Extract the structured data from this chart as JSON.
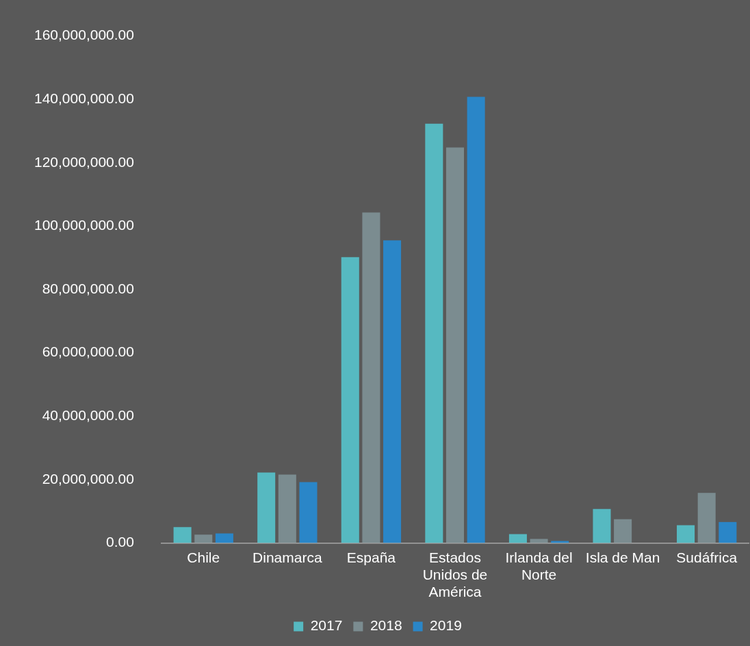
{
  "chart_data": {
    "type": "bar",
    "categories": [
      "Chile",
      "Dinamarca",
      "España",
      "Estados Unidos de América",
      "Irlanda del Norte",
      "Isla de Man",
      "Sudáfrica"
    ],
    "series": [
      {
        "name": "2017",
        "color": "#56b9c1",
        "values": [
          5000000,
          22200000,
          90200000,
          132300000,
          2800000,
          10700000,
          5600000
        ]
      },
      {
        "name": "2018",
        "color": "#7b8c90",
        "values": [
          2600000,
          21600000,
          104300000,
          124800000,
          1300000,
          7500000,
          15800000
        ]
      },
      {
        "name": "2019",
        "color": "#2a86c8",
        "values": [
          3000000,
          19200000,
          95500000,
          140800000,
          600000,
          null,
          6600000
        ]
      }
    ],
    "ylim": [
      0,
      160000000
    ],
    "yticks": [
      {
        "value": 0,
        "label": "0.00"
      },
      {
        "value": 20000000,
        "label": "20,000,000.00"
      },
      {
        "value": 40000000,
        "label": "40,000,000.00"
      },
      {
        "value": 60000000,
        "label": "60,000,000.00"
      },
      {
        "value": 80000000,
        "label": "80,000,000.00"
      },
      {
        "value": 100000000,
        "label": "100,000,000.00"
      },
      {
        "value": 120000000,
        "label": "120,000,000.00"
      },
      {
        "value": 140000000,
        "label": "140,000,000.00"
      },
      {
        "value": 160000000,
        "label": "160,000,000.00"
      }
    ],
    "grid": false,
    "legend": "bottom"
  }
}
